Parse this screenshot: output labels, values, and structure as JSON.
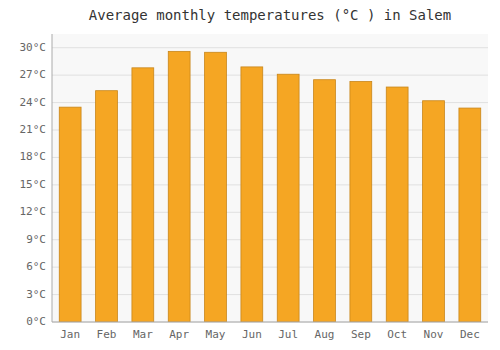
{
  "chart_data": {
    "type": "bar",
    "title": "Average monthly temperatures (°C ) in Salem",
    "categories": [
      "Jan",
      "Feb",
      "Mar",
      "Apr",
      "May",
      "Jun",
      "Jul",
      "Aug",
      "Sep",
      "Oct",
      "Nov",
      "Dec"
    ],
    "values": [
      23.5,
      25.3,
      27.8,
      29.6,
      29.5,
      27.9,
      27.1,
      26.5,
      26.3,
      25.7,
      24.2,
      23.4
    ],
    "color": "#F5A623",
    "ylim": [
      0,
      31.5
    ],
    "yticks": [
      {
        "value": 0,
        "label": "0°C"
      },
      {
        "value": 3,
        "label": "3°C"
      },
      {
        "value": 6,
        "label": "6°C"
      },
      {
        "value": 9,
        "label": "9°C"
      },
      {
        "value": 12,
        "label": "12°C"
      },
      {
        "value": 15,
        "label": "15°C"
      },
      {
        "value": 18,
        "label": "18°C"
      },
      {
        "value": 21,
        "label": "21°C"
      },
      {
        "value": 24,
        "label": "24°C"
      },
      {
        "value": 27,
        "label": "27°C"
      },
      {
        "value": 30,
        "label": "30°C"
      }
    ],
    "grid": true
  }
}
